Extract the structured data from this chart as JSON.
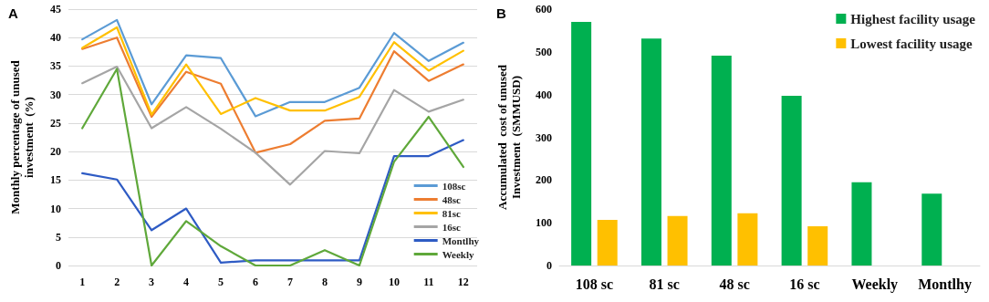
{
  "chart_data": [
    {
      "type": "line",
      "title": "A",
      "ylabel": "Monthly percentage of unused\ninvestment  (%)",
      "x": [
        1,
        2,
        3,
        4,
        5,
        6,
        7,
        8,
        9,
        10,
        11,
        12
      ],
      "xlim": [
        0.6,
        12.4
      ],
      "xticks": [
        1,
        2,
        3,
        4,
        5,
        6,
        7,
        8,
        9,
        10,
        11,
        12
      ],
      "ylim": [
        0,
        45
      ],
      "yticks": [
        0,
        5,
        10,
        15,
        20,
        25,
        30,
        35,
        40,
        45
      ],
      "grid": "y",
      "legend": "bottom right",
      "marker": "none",
      "line_style": "solid",
      "series": [
        {
          "name": "108sc",
          "color": "#5b9bd5",
          "values": [
            39.7,
            43.1,
            28.3,
            36.9,
            36.4,
            26.2,
            28.7,
            28.7,
            31.2,
            40.8,
            35.9,
            39.1
          ]
        },
        {
          "name": "48sc",
          "color": "#ed7d31",
          "values": [
            38.0,
            40.0,
            26.1,
            34.0,
            31.9,
            19.8,
            21.3,
            25.4,
            25.8,
            37.6,
            32.4,
            35.3
          ]
        },
        {
          "name": "81sc",
          "color": "#ffc000",
          "values": [
            38.2,
            41.8,
            26.5,
            35.3,
            26.6,
            29.4,
            27.2,
            27.2,
            29.6,
            39.2,
            34.2,
            37.7
          ]
        },
        {
          "name": "16sc",
          "color": "#a5a5a5",
          "values": [
            32.0,
            34.9,
            24.1,
            27.8,
            24.0,
            19.8,
            14.2,
            20.1,
            19.7,
            30.8,
            27.0,
            29.1
          ]
        },
        {
          "name": "Montlhy",
          "color": "#2e5bc4",
          "values": [
            16.2,
            15.1,
            6.2,
            10.0,
            0.5,
            0.9,
            0.9,
            0.9,
            0.9,
            19.2,
            19.2,
            22.0
          ]
        },
        {
          "name": "Weekly",
          "color": "#5fa83a",
          "values": [
            24.1,
            34.5,
            0,
            7.8,
            3.4,
            0,
            0,
            2.7,
            0,
            18.2,
            26.1,
            17.3
          ]
        }
      ]
    },
    {
      "type": "bar",
      "title": "B",
      "ylabel": "Accumulated  cost of unused\nInvestment  (SMMUSD)",
      "categories": [
        "108 sc",
        "81 sc",
        "48 sc",
        "16 sc",
        "Weekly",
        "Montlhy"
      ],
      "ylim": [
        0,
        600
      ],
      "yticks": [
        0,
        100,
        200,
        300,
        400,
        500,
        600
      ],
      "legend": "top right",
      "series": [
        {
          "name": "Highest facility usage",
          "color": "#00b050",
          "values": [
            570,
            531,
            491,
            397,
            195,
            168
          ]
        },
        {
          "name": "Lowest facility usage",
          "color": "#ffc000",
          "values": [
            107,
            116,
            122,
            92,
            null,
            null
          ]
        }
      ]
    }
  ]
}
